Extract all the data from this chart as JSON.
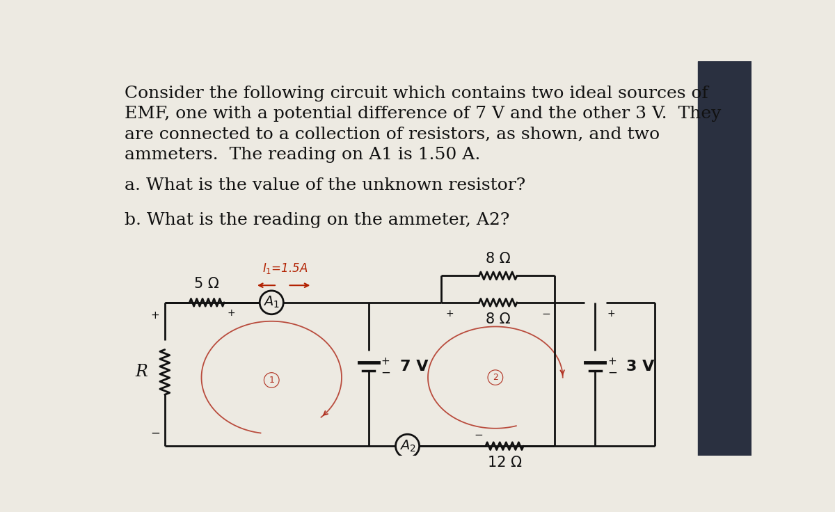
{
  "bg_color": "#edeae2",
  "text_color": "#111111",
  "line_color": "#111111",
  "title_lines": [
    "Consider the following circuit which contains two ideal sources of",
    "EMF, one with a potential difference of 7 V and the other 3 V.  They",
    "are connected to a collection of resistors, as shown, and two",
    "ammeters.  The reading on A1 is 1.50 A."
  ],
  "q_a": "a. What is the value of the unknown resistor?",
  "q_b": "b. What is the reading on the ammeter, A2?",
  "title_fontsize": 18,
  "question_fontsize": 18,
  "label_fontsize": 15,
  "annotation_color": "#b22000",
  "loop_color": "#b03020"
}
